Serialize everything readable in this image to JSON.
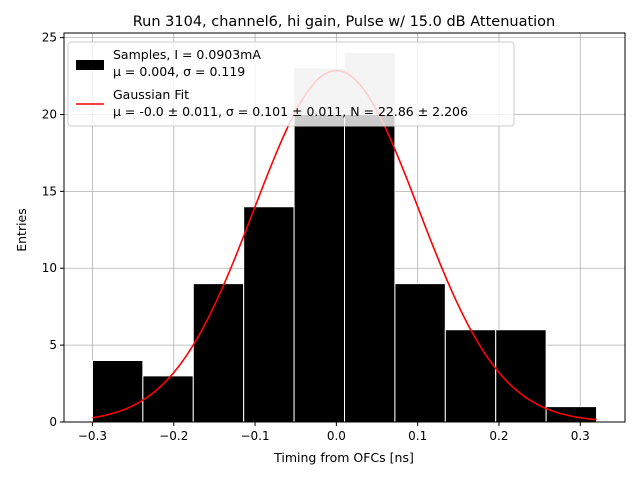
{
  "chart_data": {
    "type": "bar",
    "title": "Run 3104, channel6, hi gain, Pulse w/ 15.0 dB Attenuation",
    "xlabel": "Timing from OFCs [ns]",
    "ylabel": "Entries",
    "xlim": [
      -0.335,
      0.355
    ],
    "ylim": [
      0,
      25.3
    ],
    "xticks": [
      -0.3,
      -0.2,
      -0.1,
      0.0,
      0.1,
      0.2,
      0.3
    ],
    "xtick_labels": [
      "−0.3",
      "−0.2",
      "−0.1",
      "0.0",
      "0.1",
      "0.2",
      "0.3"
    ],
    "yticks": [
      0,
      5,
      10,
      15,
      20,
      25
    ],
    "ytick_labels": [
      "0",
      "5",
      "10",
      "15",
      "20",
      "25"
    ],
    "grid": true,
    "legend_placement": "top-left",
    "bins": {
      "edges": [
        -0.3,
        -0.238,
        -0.176,
        -0.114,
        -0.052,
        0.01,
        0.072,
        0.134,
        0.196,
        0.258,
        0.32
      ],
      "counts": [
        4,
        3,
        9,
        14,
        23,
        24,
        9,
        6,
        6,
        1
      ],
      "color": "#000000"
    },
    "overflow_bar_color": "#c8c8c8",
    "fit": {
      "mu": 0.0,
      "sigma": 0.101,
      "N": 22.86,
      "x_range": [
        -0.3,
        0.32
      ],
      "color": "#ff0000"
    },
    "legend": [
      {
        "type": "patch",
        "color": "#000000",
        "line1": "Samples, I = 0.0903mA",
        "line2": "μ = 0.004, σ = 0.119"
      },
      {
        "type": "line",
        "color": "#ff0000",
        "line1": "Gaussian Fit",
        "line2": "μ = -0.0 ± 0.011, σ = 0.101 ± 0.011, N = 22.86 ± 2.206"
      }
    ]
  }
}
